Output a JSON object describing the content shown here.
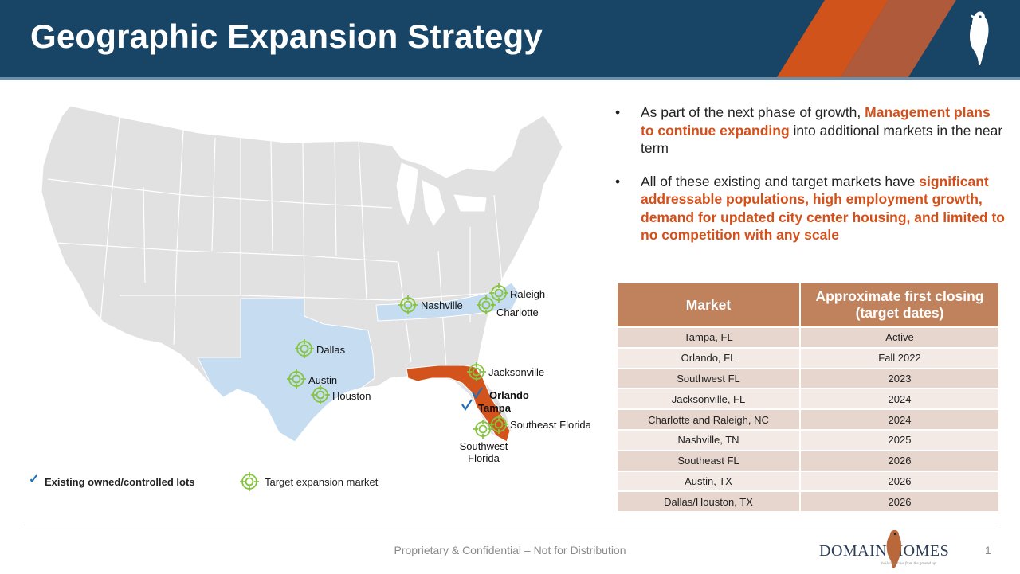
{
  "header": {
    "title": "Geographic Expansion Strategy"
  },
  "map": {
    "labels": {
      "raleigh": "Raleigh",
      "nashville": "Nashville",
      "charlotte": "Charlotte",
      "dallas": "Dallas",
      "austin": "Austin",
      "houston": "Houston",
      "jacksonville": "Jacksonville",
      "orlando": "Orlando",
      "tampa": "Tampa",
      "southeast_florida": "Southeast Florida",
      "southwest_florida_1": "Southwest",
      "southwest_florida_2": "Florida"
    },
    "colors": {
      "states": "#e1e1e1",
      "target_states": "#c5dcf1",
      "florida": "#d2541c",
      "target_icon": "#86c440",
      "check": "#1f6fb5"
    }
  },
  "legend": {
    "existing": "Existing owned/controlled lots",
    "target": "Target expansion market"
  },
  "bullets": {
    "b1_pre": "As part of the next phase of growth,",
    "b1_hl": "Management plans to continue expanding",
    "b1_post": "into additional markets in the near term",
    "b2_pre": "All of these existing and target markets have",
    "b2_hl": "significant addressable populations, high employment growth, demand for updated city center housing, and limited to no competition with any scale"
  },
  "table": {
    "headers": [
      "Market",
      "Approximate first closing  (target dates)"
    ],
    "rows": [
      [
        "Tampa, FL",
        "Active"
      ],
      [
        "Orlando, FL",
        "Fall 2022"
      ],
      [
        "Southwest FL",
        "2023"
      ],
      [
        "Jacksonville, FL",
        "2024"
      ],
      [
        "Charlotte and Raleigh, NC",
        "2024"
      ],
      [
        "Nashville, TN",
        "2025"
      ],
      [
        "Southeast FL",
        "2026"
      ],
      [
        "Austin, TX",
        "2026"
      ],
      [
        "Dallas/Houston, TX",
        "2026"
      ]
    ]
  },
  "footer": {
    "text": "Proprietary & Confidential – Not for Distribution",
    "page": "1",
    "logo_text": "Domain Homes",
    "logo_tagline": "building value from the ground up"
  }
}
